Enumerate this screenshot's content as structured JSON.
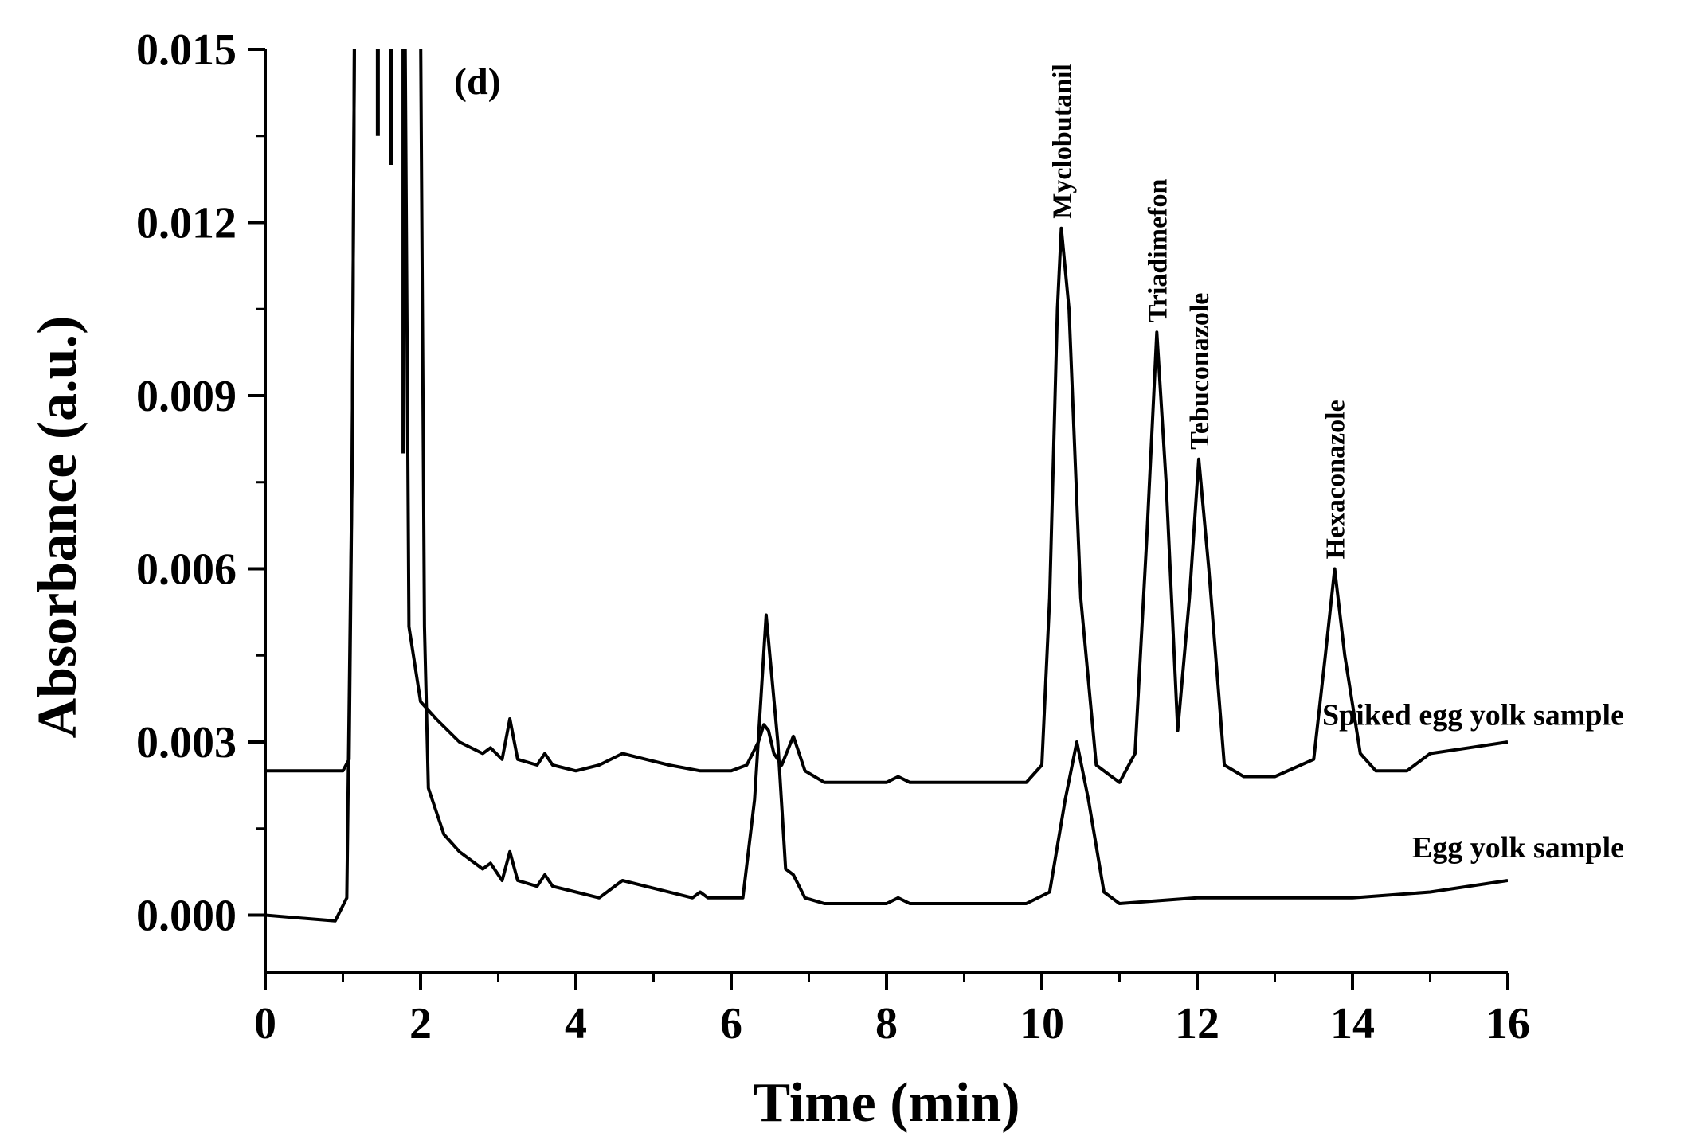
{
  "chart_data": {
    "type": "line",
    "panel_label": "(d)",
    "xlabel": "Time (min)",
    "ylabel": "Absorbance (a.u.)",
    "xlim": [
      0,
      16
    ],
    "ylim": [
      -0.001,
      0.015
    ],
    "x_ticks": [
      0,
      2,
      4,
      6,
      8,
      10,
      12,
      14,
      16
    ],
    "x_tick_labels": [
      "0",
      "2",
      "4",
      "6",
      "8",
      "10",
      "12",
      "14",
      "16"
    ],
    "y_ticks": [
      0.0,
      0.003,
      0.006,
      0.009,
      0.012,
      0.015
    ],
    "y_tick_labels": [
      "0.000",
      "0.003",
      "0.006",
      "0.009",
      "0.012",
      "0.015"
    ],
    "grid": false,
    "series": [
      {
        "name": "Spiked egg yolk sample",
        "color": "#000000",
        "x": [
          0,
          1.0,
          1.08,
          1.12,
          1.15,
          1.45,
          1.62,
          1.8,
          1.85,
          2.0,
          2.2,
          2.5,
          2.8,
          2.9,
          3.05,
          3.15,
          3.25,
          3.5,
          3.6,
          3.7,
          4.0,
          4.3,
          4.6,
          4.9,
          5.2,
          5.6,
          6.0,
          6.2,
          6.35,
          6.42,
          6.48,
          6.55,
          6.65,
          6.8,
          6.95,
          7.2,
          8.0,
          8.15,
          8.3,
          9.0,
          9.8,
          10.0,
          10.1,
          10.2,
          10.25,
          10.35,
          10.5,
          10.7,
          11.0,
          11.2,
          11.35,
          11.48,
          11.6,
          11.75,
          11.9,
          12.02,
          12.15,
          12.35,
          12.6,
          13.0,
          13.5,
          13.65,
          13.77,
          13.9,
          14.1,
          14.3,
          14.7,
          15.0,
          15.5,
          16.0
        ],
        "y": [
          0.0025,
          0.0025,
          0.0027,
          0.008,
          0.0155,
          0.0155,
          0.0155,
          0.0155,
          0.005,
          0.0037,
          0.0034,
          0.003,
          0.0028,
          0.0029,
          0.0027,
          0.0034,
          0.0027,
          0.0026,
          0.0028,
          0.0026,
          0.0025,
          0.0026,
          0.0028,
          0.0027,
          0.0026,
          0.0025,
          0.0025,
          0.0026,
          0.003,
          0.0033,
          0.0032,
          0.0028,
          0.0026,
          0.0031,
          0.0025,
          0.0023,
          0.0023,
          0.0024,
          0.0023,
          0.0023,
          0.0023,
          0.0026,
          0.0055,
          0.0105,
          0.0119,
          0.0105,
          0.0055,
          0.0026,
          0.0023,
          0.0028,
          0.0065,
          0.0101,
          0.0075,
          0.0032,
          0.0055,
          0.0079,
          0.006,
          0.0026,
          0.0024,
          0.0024,
          0.0027,
          0.0045,
          0.006,
          0.0045,
          0.0028,
          0.0025,
          0.0025,
          0.0028,
          0.0029,
          0.003
        ]
      },
      {
        "name": "Egg yolk sample",
        "color": "#000000",
        "x": [
          0,
          0.9,
          1.05,
          1.12,
          1.15,
          2.0,
          2.05,
          2.1,
          2.3,
          2.5,
          2.8,
          2.9,
          3.05,
          3.15,
          3.25,
          3.5,
          3.6,
          3.7,
          4.0,
          4.3,
          4.6,
          4.9,
          5.5,
          5.6,
          5.7,
          6.0,
          6.15,
          6.3,
          6.45,
          6.6,
          6.7,
          6.8,
          6.95,
          7.2,
          8.0,
          8.15,
          8.3,
          9.8,
          10.1,
          10.3,
          10.45,
          10.6,
          10.8,
          11.0,
          12.0,
          13.0,
          14.0,
          15.0,
          16.0
        ],
        "y": [
          0.0,
          -0.0001,
          0.0003,
          0.008,
          0.0155,
          0.0155,
          0.005,
          0.0022,
          0.0014,
          0.0011,
          0.0008,
          0.0009,
          0.0006,
          0.0011,
          0.0006,
          0.0005,
          0.0007,
          0.0005,
          0.0004,
          0.0003,
          0.0006,
          0.0005,
          0.0003,
          0.0004,
          0.0003,
          0.0003,
          0.0003,
          0.002,
          0.0052,
          0.003,
          0.0008,
          0.0007,
          0.0003,
          0.0002,
          0.0002,
          0.0003,
          0.0002,
          0.0002,
          0.0004,
          0.002,
          0.003,
          0.002,
          0.0004,
          0.0002,
          0.0003,
          0.0003,
          0.0003,
          0.0004,
          0.0006
        ]
      }
    ],
    "peak_annotations": [
      {
        "label": "Myclobutanil",
        "x": 10.25,
        "y": 0.0119
      },
      {
        "label": "Triadimefon",
        "x": 11.48,
        "y": 0.0101
      },
      {
        "label": "Tebuconazole",
        "x": 12.02,
        "y": 0.0079
      },
      {
        "label": "Hexaconazole",
        "x": 13.77,
        "y": 0.006
      }
    ],
    "trace_labels": [
      {
        "label": "Spiked egg yolk sample",
        "series": 0
      },
      {
        "label": "Egg yolk sample",
        "series": 1
      }
    ],
    "solvent_front_spikes": [
      {
        "x": 1.45,
        "y_min": 0.0135
      },
      {
        "x": 1.62,
        "y_min": 0.013
      },
      {
        "x": 1.78,
        "y_min": 0.008
      }
    ]
  }
}
